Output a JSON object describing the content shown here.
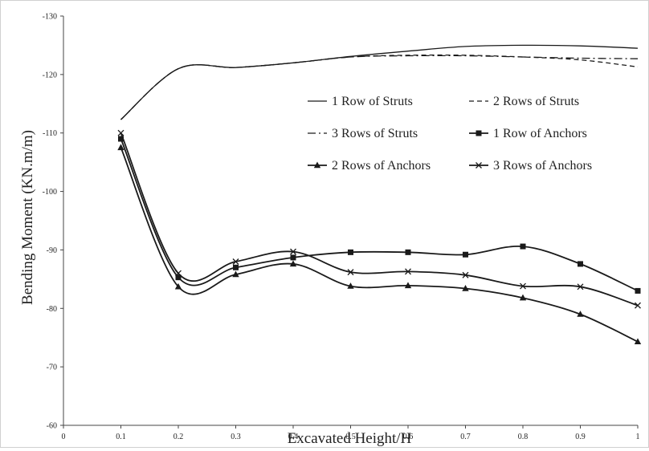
{
  "chart_data": {
    "type": "line",
    "xlabel": "Excavated Height/H",
    "ylabel": "Bending Moment (KN.m/m)",
    "xlim": [
      0,
      1
    ],
    "ylim": [
      -60,
      -130
    ],
    "x_ticks": [
      0,
      0.1,
      0.2,
      0.3,
      0.4,
      0.5,
      0.6,
      0.7,
      0.8,
      0.9,
      1
    ],
    "x_tick_labels": [
      "0",
      "0.1",
      "0.2",
      "0.3",
      "0.4",
      "0.5",
      "0.6",
      "0.7",
      "0.8",
      "0.9",
      "1"
    ],
    "y_ticks": [
      -60,
      -70,
      -80,
      -90,
      -100,
      -110,
      -120,
      -130
    ],
    "y_tick_labels": [
      "-60",
      "-70",
      "-80",
      "-90",
      "-100",
      "-110",
      "-120",
      "-130"
    ],
    "grid": false,
    "legend_position": "right, upper-middle (two columns)",
    "x": [
      0.1,
      0.2,
      0.3,
      0.4,
      0.5,
      0.6,
      0.7,
      0.8,
      0.9,
      1
    ],
    "series": [
      {
        "name": "1 Row of Struts",
        "style": "solid",
        "marker": "none",
        "values": [
          -112.3,
          -121.0,
          -121.2,
          -122.0,
          -123.1,
          -124.0,
          -124.8,
          -125.0,
          -124.9,
          -124.5
        ]
      },
      {
        "name": "2 Rows of Struts",
        "style": "dashed",
        "marker": "none",
        "values": [
          -112.3,
          -121.0,
          -121.2,
          -122.0,
          -123.0,
          -123.3,
          -123.3,
          -123.0,
          -122.5,
          -121.3
        ]
      },
      {
        "name": "3 Rows of Struts",
        "style": "dashdot",
        "marker": "none",
        "values": [
          -112.3,
          -121.0,
          -121.2,
          -122.0,
          -123.0,
          -123.2,
          -123.2,
          -123.0,
          -122.8,
          -122.7
        ]
      },
      {
        "name": "1 Row of Anchors",
        "style": "solid",
        "marker": "square",
        "values": [
          -109.0,
          -85.3,
          -87.0,
          -88.7,
          -89.6,
          -89.6,
          -89.2,
          -90.6,
          -87.6,
          -83.0
        ]
      },
      {
        "name": "2 Rows of Anchors",
        "style": "solid",
        "marker": "triangle",
        "values": [
          -107.5,
          -83.7,
          -85.8,
          -87.6,
          -83.8,
          -83.9,
          -83.4,
          -81.8,
          -79.0,
          -74.3
        ]
      },
      {
        "name": "3 Rows of Anchors",
        "style": "solid",
        "marker": "x",
        "values": [
          -110.0,
          -86.0,
          -88.0,
          -89.7,
          -86.2,
          -86.3,
          -85.7,
          -83.8,
          -83.7,
          -80.5
        ]
      }
    ]
  },
  "colors": {
    "line": "#1a1a1a",
    "axis": "#444444",
    "text": "#222222",
    "frame": "#d0d0d0"
  }
}
